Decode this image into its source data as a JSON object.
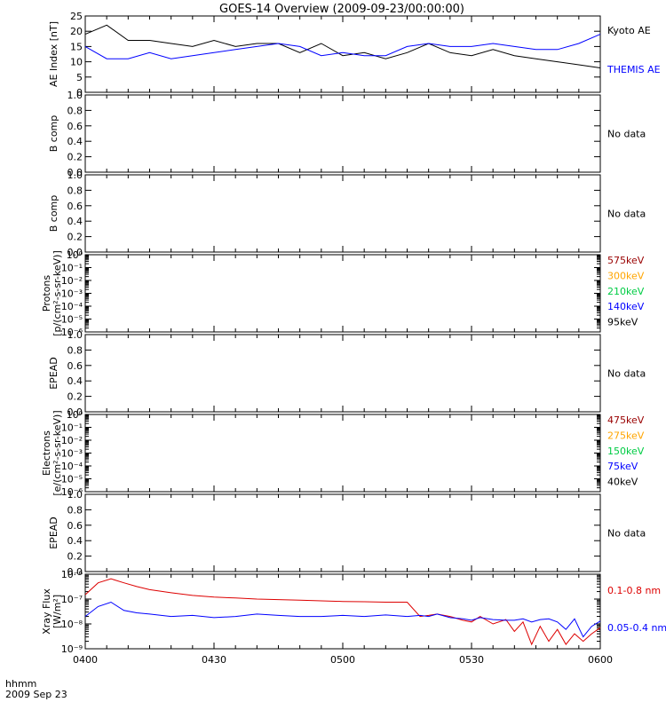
{
  "title": "GOES-14 Overview (2009-09-23/00:00:00)",
  "time_axis": {
    "tick_labels": [
      "0400",
      "0430",
      "0500",
      "0530",
      "0600"
    ],
    "corner_label_1": "hhmm",
    "corner_label_2": "2009 Sep 23"
  },
  "chart_data": [
    {
      "type": "line",
      "ylabel": "AE Index [nT]",
      "ylim": [
        0,
        25
      ],
      "y_ticks": [
        "0",
        "5",
        "10",
        "15",
        "20",
        "25"
      ],
      "x": [
        0,
        5,
        10,
        15,
        20,
        25,
        30,
        35,
        40,
        45,
        50,
        55,
        60,
        65,
        70,
        75,
        80,
        85,
        90,
        95,
        100,
        105,
        110,
        115,
        120
      ],
      "series": [
        {
          "name": "Kyoto AE",
          "color": "#000000",
          "values": [
            19,
            22,
            17,
            17,
            16,
            15,
            17,
            15,
            16,
            16,
            13,
            16,
            12,
            13,
            11,
            13,
            16,
            13,
            12,
            14,
            12,
            11,
            10,
            9,
            8
          ]
        },
        {
          "name": "THEMIS AE",
          "color": "#0000ff",
          "values": [
            15,
            11,
            11,
            13,
            11,
            12,
            13,
            14,
            15,
            16,
            15,
            12,
            13,
            12,
            12,
            15,
            16,
            15,
            15,
            16,
            15,
            14,
            14,
            16,
            19
          ]
        }
      ]
    },
    {
      "type": "line",
      "ylabel": "B comp",
      "ylim": [
        0,
        1
      ],
      "y_ticks": [
        "0.0",
        "0.2",
        "0.4",
        "0.6",
        "0.8",
        "1.0"
      ],
      "series": [],
      "status": "No data"
    },
    {
      "type": "line",
      "ylabel": "B comp",
      "ylim": [
        0,
        1
      ],
      "y_ticks": [
        "0.0",
        "0.2",
        "0.4",
        "0.6",
        "0.8",
        "1.0"
      ],
      "series": [],
      "status": "No data"
    },
    {
      "type": "line",
      "ylabel": "Protons",
      "yunits": "[p/(cm²-s-sr-keV)]",
      "scale": "log",
      "y_ticks": [
        "10⁻⁶",
        "10⁻⁵",
        "10⁻⁴",
        "10⁻³",
        "10⁻²",
        "10⁻¹",
        "10⁰"
      ],
      "series": [
        {
          "name": "575keV",
          "color": "#990000",
          "values": []
        },
        {
          "name": "300keV",
          "color": "#ffa500",
          "values": []
        },
        {
          "name": "210keV",
          "color": "#00cc44",
          "values": []
        },
        {
          "name": "140keV",
          "color": "#0000ff",
          "values": []
        },
        {
          "name": "95keV",
          "color": "#000000",
          "values": []
        }
      ]
    },
    {
      "type": "line",
      "ylabel": "EPEAD",
      "ylim": [
        0,
        1
      ],
      "y_ticks": [
        "0.0",
        "0.2",
        "0.4",
        "0.6",
        "0.8",
        "1.0"
      ],
      "series": [],
      "status": "No data"
    },
    {
      "type": "line",
      "ylabel": "Electrons",
      "yunits": "[e/(cm²-s-sr-keV)]",
      "scale": "log",
      "y_ticks": [
        "10⁻⁶",
        "10⁻⁵",
        "10⁻⁴",
        "10⁻³",
        "10⁻²",
        "10⁻¹",
        "10⁰"
      ],
      "series": [
        {
          "name": "475keV",
          "color": "#990000",
          "values": []
        },
        {
          "name": "275keV",
          "color": "#ffa500",
          "values": []
        },
        {
          "name": "150keV",
          "color": "#00cc44",
          "values": []
        },
        {
          "name": "75keV",
          "color": "#0000ff",
          "values": []
        },
        {
          "name": "40keV",
          "color": "#000000",
          "values": []
        }
      ]
    },
    {
      "type": "line",
      "ylabel": "EPEAD",
      "ylim": [
        0,
        1
      ],
      "y_ticks": [
        "0.0",
        "0.2",
        "0.4",
        "0.6",
        "0.8",
        "1.0"
      ],
      "series": [],
      "status": "No data"
    },
    {
      "type": "line",
      "ylabel": "Xray Flux",
      "yunits": "[W/m²]",
      "scale": "log",
      "ylim": [
        1e-09,
        1e-06
      ],
      "y_ticks": [
        "10⁻⁹",
        "10⁻⁸",
        "10⁻⁷",
        "10⁻⁶"
      ],
      "x": [
        0,
        3,
        6,
        9,
        12,
        15,
        20,
        25,
        30,
        35,
        40,
        45,
        50,
        55,
        60,
        65,
        70,
        75,
        78,
        80,
        82,
        85,
        88,
        90,
        92,
        95,
        98,
        100,
        102,
        104,
        106,
        108,
        110,
        112,
        114,
        116,
        118,
        120
      ],
      "series": [
        {
          "name": "0.1-0.8 nm",
          "color": "#dd0000",
          "values": [
            1.5e-07,
            4.5e-07,
            6.5e-07,
            4.5e-07,
            3.2e-07,
            2.4e-07,
            1.8e-07,
            1.4e-07,
            1.2e-07,
            1.1e-07,
            1e-07,
            9.5e-08,
            9e-08,
            8.5e-08,
            8e-08,
            7.8e-08,
            7.5e-08,
            7.5e-08,
            2e-08,
            2.2e-08,
            2.5e-08,
            2e-08,
            1.4e-08,
            1.2e-08,
            2e-08,
            1e-08,
            1.5e-08,
            5e-09,
            1.2e-08,
            1.5e-09,
            8e-09,
            2e-09,
            6e-09,
            1.5e-09,
            4e-09,
            2e-09,
            4e-09,
            7e-09
          ]
        },
        {
          "name": "0.05-0.4 nm",
          "color": "#0000ff",
          "values": [
            2e-08,
            5e-08,
            7.5e-08,
            3.5e-08,
            2.8e-08,
            2.5e-08,
            2e-08,
            2.2e-08,
            1.8e-08,
            2e-08,
            2.5e-08,
            2.2e-08,
            2e-08,
            2e-08,
            2.2e-08,
            2e-08,
            2.3e-08,
            2e-08,
            2.2e-08,
            2e-08,
            2.5e-08,
            1.8e-08,
            1.6e-08,
            1.4e-08,
            1.8e-08,
            1.5e-08,
            1.4e-08,
            1.4e-08,
            1.6e-08,
            1.2e-08,
            1.5e-08,
            1.6e-08,
            1.2e-08,
            6e-09,
            1.6e-08,
            3e-09,
            8e-09,
            1.3e-08
          ]
        }
      ]
    }
  ],
  "panel_labels": {
    "p0": [
      "Kyoto AE",
      "THEMIS AE"
    ],
    "p1": "No data",
    "p2": "No data",
    "p4": "No data",
    "p6": "No data"
  }
}
